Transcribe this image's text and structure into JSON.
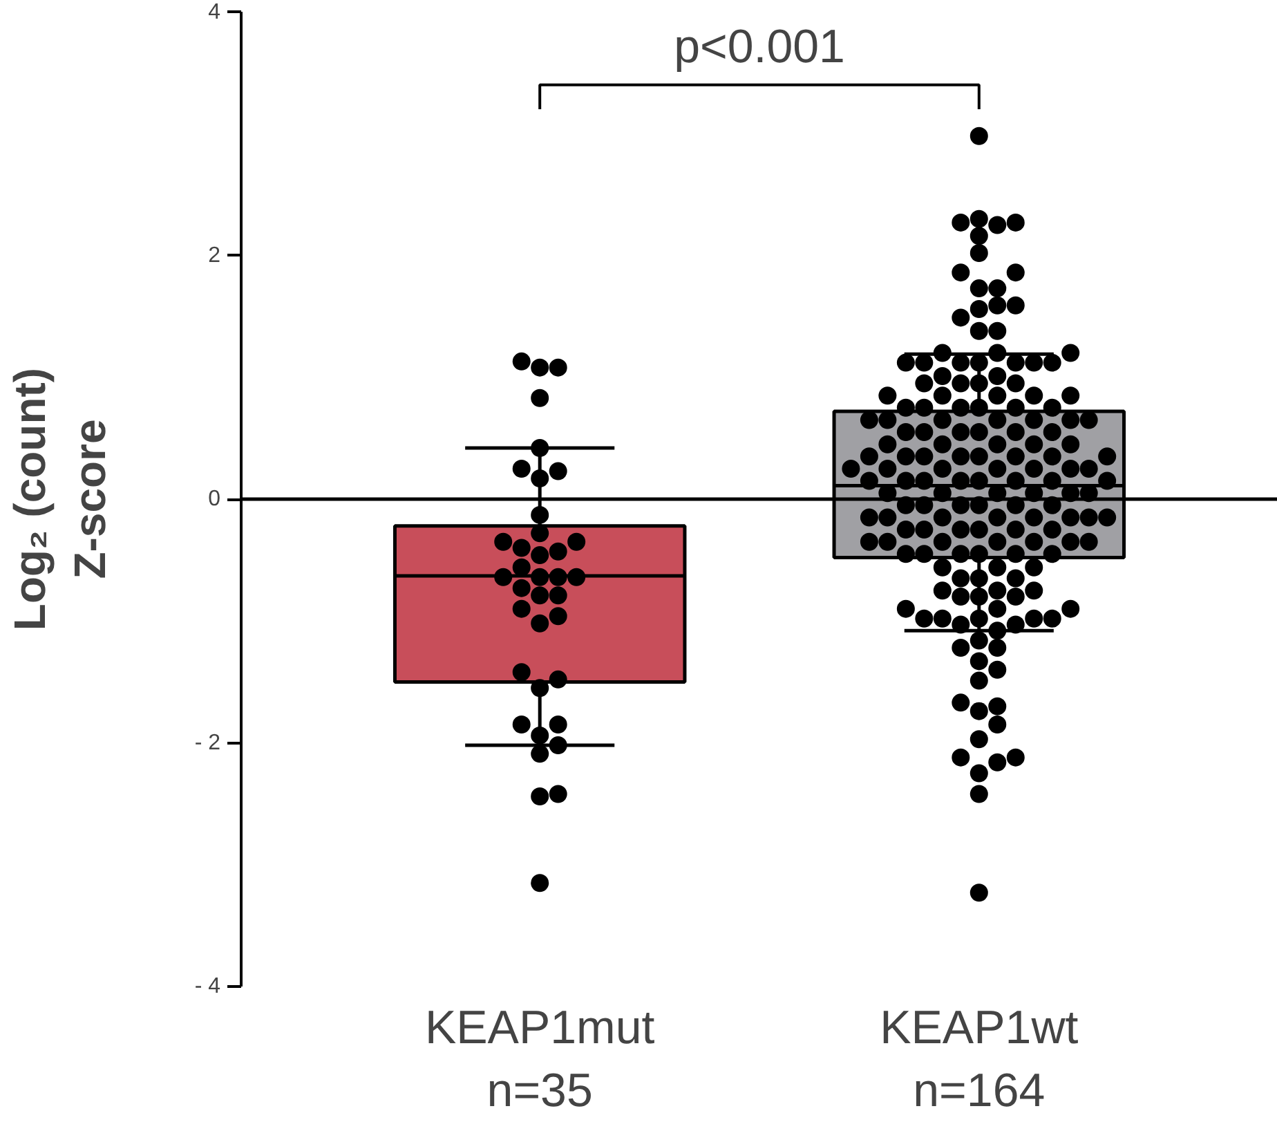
{
  "chart_data": {
    "type": "box",
    "ylabel": "Log₂ (count)\nZ-score",
    "categories": [
      "KEAP1mut\nn=35",
      "KEAP1wt\nn=164"
    ],
    "ylim": [
      -4,
      4
    ],
    "yticks": [
      {
        "value": -4,
        "label": "- 4"
      },
      {
        "value": -2,
        "label": "- 2"
      },
      0,
      2,
      4
    ],
    "grid": false,
    "marker": "circle",
    "annotations": [
      "p<0.001"
    ],
    "ref_lines": [
      {
        "axis": "y",
        "value": 0,
        "label": null,
        "color": "#000000"
      }
    ],
    "series": [
      {
        "colors": [
          "#c84e5a",
          "#a0a0a4"
        ],
        "boxes": [
          {
            "low": -2.02,
            "q1": -1.5,
            "median": -0.63,
            "q3": -0.22,
            "high": 0.42
          },
          {
            "low": -1.08,
            "q1": -0.48,
            "median": 0.11,
            "q3": 0.72,
            "high": 1.19
          }
        ]
      },
      {
        "type": "scatter",
        "color": "#000000",
        "x": [
          "KEAP1mut\nn=35",
          "KEAP1mut\nn=35",
          "KEAP1mut\nn=35",
          "KEAP1mut\nn=35",
          "KEAP1mut\nn=35",
          "KEAP1mut\nn=35",
          "KEAP1mut\nn=35",
          "KEAP1mut\nn=35",
          "KEAP1mut\nn=35",
          "KEAP1mut\nn=35",
          "KEAP1mut\nn=35",
          "KEAP1mut\nn=35",
          "KEAP1mut\nn=35",
          "KEAP1mut\nn=35",
          "KEAP1mut\nn=35",
          "KEAP1mut\nn=35",
          "KEAP1mut\nn=35",
          "KEAP1mut\nn=35",
          "KEAP1mut\nn=35",
          "KEAP1mut\nn=35",
          "KEAP1mut\nn=35",
          "KEAP1mut\nn=35",
          "KEAP1mut\nn=35",
          "KEAP1mut\nn=35",
          "KEAP1mut\nn=35",
          "KEAP1mut\nn=35",
          "KEAP1mut\nn=35",
          "KEAP1mut\nn=35",
          "KEAP1mut\nn=35",
          "KEAP1mut\nn=35",
          "KEAP1mut\nn=35",
          "KEAP1mut\nn=35",
          "KEAP1mut\nn=35",
          "KEAP1mut\nn=35",
          "KEAP1mut\nn=35",
          "KEAP1mut\nn=35",
          "KEAP1mut\nn=35"
        ],
        "values": [
          1.13,
          1.08,
          1.08,
          0.83,
          0.42,
          0.25,
          0.23,
          0.17,
          -0.13,
          -0.28,
          -0.35,
          -0.35,
          -0.4,
          -0.43,
          -0.46,
          -0.56,
          -0.64,
          -0.64,
          -0.64,
          -0.64,
          -0.73,
          -0.79,
          -0.79,
          -0.9,
          -0.96,
          -1.02,
          -1.42,
          -1.48,
          -1.55,
          -1.85,
          -1.85,
          -1.94,
          -2.02,
          -2.09,
          -2.42,
          -2.44,
          -3.15
        ]
      },
      {
        "type": "scatter",
        "color": "#000000",
        "x": [
          "KEAP1wt\nn=164",
          "KEAP1wt\nn=164",
          "KEAP1wt\nn=164",
          "KEAP1wt\nn=164",
          "KEAP1wt\nn=164",
          "KEAP1wt\nn=164",
          "KEAP1wt\nn=164",
          "KEAP1wt\nn=164",
          "KEAP1wt\nn=164",
          "KEAP1wt\nn=164",
          "KEAP1wt\nn=164",
          "KEAP1wt\nn=164",
          "KEAP1wt\nn=164",
          "KEAP1wt\nn=164",
          "KEAP1wt\nn=164",
          "KEAP1wt\nn=164",
          "KEAP1wt\nn=164",
          "KEAP1wt\nn=164",
          "KEAP1wt\nn=164",
          "KEAP1wt\nn=164",
          "KEAP1wt\nn=164",
          "KEAP1wt\nn=164",
          "KEAP1wt\nn=164",
          "KEAP1wt\nn=164",
          "KEAP1wt\nn=164",
          "KEAP1wt\nn=164",
          "KEAP1wt\nn=164",
          "KEAP1wt\nn=164",
          "KEAP1wt\nn=164",
          "KEAP1wt\nn=164",
          "KEAP1wt\nn=164",
          "KEAP1wt\nn=164",
          "KEAP1wt\nn=164",
          "KEAP1wt\nn=164",
          "KEAP1wt\nn=164",
          "KEAP1wt\nn=164",
          "KEAP1wt\nn=164",
          "KEAP1wt\nn=164",
          "KEAP1wt\nn=164",
          "KEAP1wt\nn=164",
          "KEAP1wt\nn=164",
          "KEAP1wt\nn=164",
          "KEAP1wt\nn=164",
          "KEAP1wt\nn=164",
          "KEAP1wt\nn=164",
          "KEAP1wt\nn=164",
          "KEAP1wt\nn=164",
          "KEAP1wt\nn=164",
          "KEAP1wt\nn=164",
          "KEAP1wt\nn=164",
          "KEAP1wt\nn=164",
          "KEAP1wt\nn=164",
          "KEAP1wt\nn=164",
          "KEAP1wt\nn=164",
          "KEAP1wt\nn=164",
          "KEAP1wt\nn=164",
          "KEAP1wt\nn=164",
          "KEAP1wt\nn=164",
          "KEAP1wt\nn=164",
          "KEAP1wt\nn=164",
          "KEAP1wt\nn=164",
          "KEAP1wt\nn=164",
          "KEAP1wt\nn=164",
          "KEAP1wt\nn=164",
          "KEAP1wt\nn=164",
          "KEAP1wt\nn=164",
          "KEAP1wt\nn=164",
          "KEAP1wt\nn=164",
          "KEAP1wt\nn=164",
          "KEAP1wt\nn=164",
          "KEAP1wt\nn=164",
          "KEAP1wt\nn=164",
          "KEAP1wt\nn=164",
          "KEAP1wt\nn=164",
          "KEAP1wt\nn=164",
          "KEAP1wt\nn=164",
          "KEAP1wt\nn=164",
          "KEAP1wt\nn=164",
          "KEAP1wt\nn=164",
          "KEAP1wt\nn=164",
          "KEAP1wt\nn=164",
          "KEAP1wt\nn=164",
          "KEAP1wt\nn=164",
          "KEAP1wt\nn=164",
          "KEAP1wt\nn=164",
          "KEAP1wt\nn=164",
          "KEAP1wt\nn=164",
          "KEAP1wt\nn=164",
          "KEAP1wt\nn=164",
          "KEAP1wt\nn=164",
          "KEAP1wt\nn=164",
          "KEAP1wt\nn=164",
          "KEAP1wt\nn=164",
          "KEAP1wt\nn=164",
          "KEAP1wt\nn=164",
          "KEAP1wt\nn=164",
          "KEAP1wt\nn=164",
          "KEAP1wt\nn=164",
          "KEAP1wt\nn=164",
          "KEAP1wt\nn=164",
          "KEAP1wt\nn=164",
          "KEAP1wt\nn=164",
          "KEAP1wt\nn=164",
          "KEAP1wt\nn=164",
          "KEAP1wt\nn=164",
          "KEAP1wt\nn=164",
          "KEAP1wt\nn=164",
          "KEAP1wt\nn=164",
          "KEAP1wt\nn=164",
          "KEAP1wt\nn=164",
          "KEAP1wt\nn=164",
          "KEAP1wt\nn=164",
          "KEAP1wt\nn=164",
          "KEAP1wt\nn=164",
          "KEAP1wt\nn=164",
          "KEAP1wt\nn=164",
          "KEAP1wt\nn=164",
          "KEAP1wt\nn=164",
          "KEAP1wt\nn=164",
          "KEAP1wt\nn=164",
          "KEAP1wt\nn=164",
          "KEAP1wt\nn=164",
          "KEAP1wt\nn=164",
          "KEAP1wt\nn=164",
          "KEAP1wt\nn=164",
          "KEAP1wt\nn=164",
          "KEAP1wt\nn=164",
          "KEAP1wt\nn=164",
          "KEAP1wt\nn=164",
          "KEAP1wt\nn=164",
          "KEAP1wt\nn=164",
          "KEAP1wt\nn=164",
          "KEAP1wt\nn=164",
          "KEAP1wt\nn=164",
          "KEAP1wt\nn=164",
          "KEAP1wt\nn=164",
          "KEAP1wt\nn=164",
          "KEAP1wt\nn=164",
          "KEAP1wt\nn=164",
          "KEAP1wt\nn=164",
          "KEAP1wt\nn=164",
          "KEAP1wt\nn=164",
          "KEAP1wt\nn=164",
          "KEAP1wt\nn=164",
          "KEAP1wt\nn=164",
          "KEAP1wt\nn=164",
          "KEAP1wt\nn=164",
          "KEAP1wt\nn=164",
          "KEAP1wt\nn=164",
          "KEAP1wt\nn=164",
          "KEAP1wt\nn=164",
          "KEAP1wt\nn=164",
          "KEAP1wt\nn=164",
          "KEAP1wt\nn=164",
          "KEAP1wt\nn=164",
          "KEAP1wt\nn=164",
          "KEAP1wt\nn=164",
          "KEAP1wt\nn=164",
          "KEAP1wt\nn=164",
          "KEAP1wt\nn=164",
          "KEAP1wt\nn=164",
          "KEAP1wt\nn=164",
          "KEAP1wt\nn=164",
          "KEAP1wt\nn=164"
        ],
        "values": [
          2.98,
          2.3,
          2.27,
          2.27,
          2.25,
          2.16,
          2.02,
          1.86,
          1.86,
          1.73,
          1.73,
          1.59,
          1.59,
          1.56,
          1.49,
          1.38,
          1.38,
          1.2,
          1.2,
          1.2,
          1.12,
          1.12,
          1.12,
          1.12,
          1.12,
          1.12,
          1.12,
          1.01,
          1.01,
          0.95,
          0.95,
          0.95,
          0.95,
          0.85,
          0.85,
          0.85,
          0.85,
          0.85,
          0.75,
          0.75,
          0.75,
          0.75,
          0.75,
          0.75,
          0.65,
          0.65,
          0.65,
          0.65,
          0.65,
          0.65,
          0.65,
          0.55,
          0.55,
          0.55,
          0.55,
          0.55,
          0.55,
          0.45,
          0.45,
          0.45,
          0.45,
          0.45,
          0.35,
          0.35,
          0.35,
          0.35,
          0.35,
          0.35,
          0.35,
          0.35,
          0.25,
          0.25,
          0.25,
          0.25,
          0.25,
          0.25,
          0.25,
          0.15,
          0.15,
          0.15,
          0.15,
          0.15,
          0.15,
          0.15,
          0.15,
          0.05,
          0.05,
          0.05,
          0.05,
          0.05,
          0.05,
          -0.05,
          -0.05,
          -0.05,
          -0.05,
          -0.05,
          -0.05,
          -0.15,
          -0.15,
          -0.15,
          -0.15,
          -0.15,
          -0.15,
          -0.15,
          -0.15,
          -0.25,
          -0.25,
          -0.25,
          -0.25,
          -0.25,
          -0.25,
          -0.35,
          -0.35,
          -0.35,
          -0.35,
          -0.35,
          -0.35,
          -0.35,
          -0.45,
          -0.45,
          -0.45,
          -0.45,
          -0.45,
          -0.45,
          -0.56,
          -0.56,
          -0.56,
          -0.65,
          -0.65,
          -0.65,
          -0.75,
          -0.75,
          -0.75,
          -0.8,
          -0.8,
          -0.8,
          -0.9,
          -0.9,
          -0.9,
          -0.98,
          -0.98,
          -0.98,
          -0.98,
          -0.98,
          -1.03,
          -1.03,
          -1.08,
          -1.16,
          -1.22,
          -1.22,
          -1.33,
          -1.4,
          -1.49,
          -1.67,
          -1.7,
          -1.74,
          -1.85,
          -1.97,
          -2.12,
          -2.16,
          -2.12,
          -2.25,
          -2.42,
          -3.23
        ]
      }
    ]
  }
}
